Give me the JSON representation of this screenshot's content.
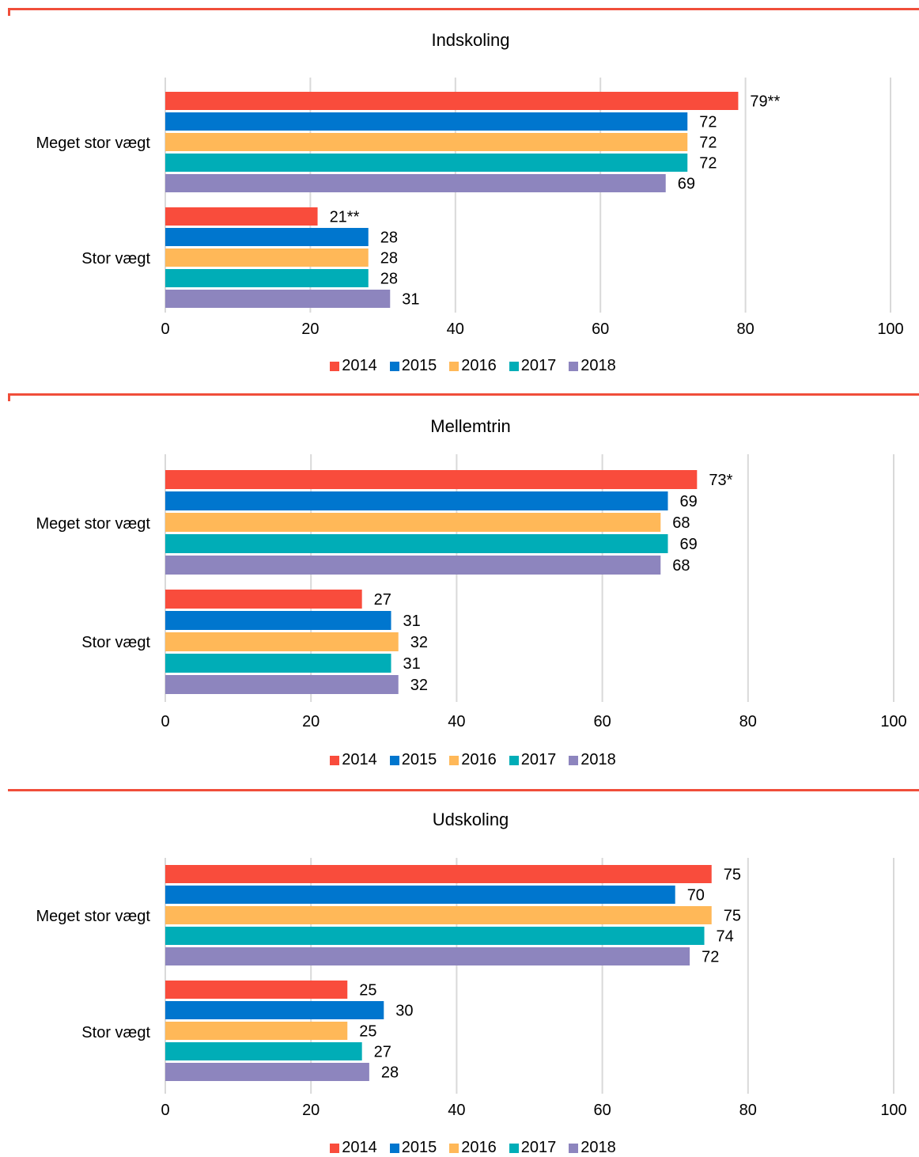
{
  "chart_data": [
    {
      "type": "bar",
      "orientation": "horizontal",
      "title": "Indskoling",
      "categories": [
        "Meget stor vægt",
        "Stor vægt"
      ],
      "series": [
        {
          "name": "2014",
          "color": "#F94C3C",
          "values": [
            79,
            21
          ],
          "labels": [
            "79**",
            "21**"
          ]
        },
        {
          "name": "2015",
          "color": "#0076CE",
          "values": [
            72,
            28
          ],
          "labels": [
            "72",
            "28"
          ]
        },
        {
          "name": "2016",
          "color": "#FFB858",
          "values": [
            72,
            28
          ],
          "labels": [
            "72",
            "28"
          ]
        },
        {
          "name": "2017",
          "color": "#00ADB7",
          "values": [
            72,
            28
          ],
          "labels": [
            "72",
            "28"
          ]
        },
        {
          "name": "2018",
          "color": "#8D85BE",
          "values": [
            69,
            31
          ],
          "labels": [
            "69",
            "31"
          ]
        }
      ],
      "xlim": [
        0,
        100
      ],
      "xticks": [
        "0",
        "20",
        "40",
        "60",
        "80",
        "100"
      ],
      "grid": true,
      "legend": "bottom"
    },
    {
      "type": "bar",
      "orientation": "horizontal",
      "title": "Mellemtrin",
      "categories": [
        "Meget stor vægt",
        "Stor vægt"
      ],
      "series": [
        {
          "name": "2014",
          "color": "#F94C3C",
          "values": [
            73,
            27
          ],
          "labels": [
            "73*",
            "27"
          ]
        },
        {
          "name": "2015",
          "color": "#0076CE",
          "values": [
            69,
            31
          ],
          "labels": [
            "69",
            "31"
          ]
        },
        {
          "name": "2016",
          "color": "#FFB858",
          "values": [
            68,
            32
          ],
          "labels": [
            "68",
            "32"
          ]
        },
        {
          "name": "2017",
          "color": "#00ADB7",
          "values": [
            69,
            31
          ],
          "labels": [
            "69",
            "31"
          ]
        },
        {
          "name": "2018",
          "color": "#8D85BE",
          "values": [
            68,
            32
          ],
          "labels": [
            "68",
            "32"
          ]
        }
      ],
      "xlim": [
        0,
        100
      ],
      "xticks": [
        "0",
        "20",
        "40",
        "60",
        "80",
        "100"
      ],
      "grid": true,
      "legend": "bottom"
    },
    {
      "type": "bar",
      "orientation": "horizontal",
      "title": "Udskoling",
      "categories": [
        "Meget stor vægt",
        "Stor vægt"
      ],
      "series": [
        {
          "name": "2014",
          "color": "#F94C3C",
          "values": [
            75,
            25
          ],
          "labels": [
            "75",
            "25"
          ]
        },
        {
          "name": "2015",
          "color": "#0076CE",
          "values": [
            70,
            30
          ],
          "labels": [
            "70",
            "30"
          ]
        },
        {
          "name": "2016",
          "color": "#FFB858",
          "values": [
            75,
            25
          ],
          "labels": [
            "75",
            "25"
          ]
        },
        {
          "name": "2017",
          "color": "#00ADB7",
          "values": [
            74,
            27
          ],
          "labels": [
            "74",
            "27"
          ]
        },
        {
          "name": "2018",
          "color": "#8D85BE",
          "values": [
            72,
            28
          ],
          "labels": [
            "72",
            "28"
          ]
        }
      ],
      "xlim": [
        0,
        100
      ],
      "xticks": [
        "0",
        "20",
        "40",
        "60",
        "80",
        "100"
      ],
      "grid": true,
      "legend": "bottom"
    }
  ]
}
